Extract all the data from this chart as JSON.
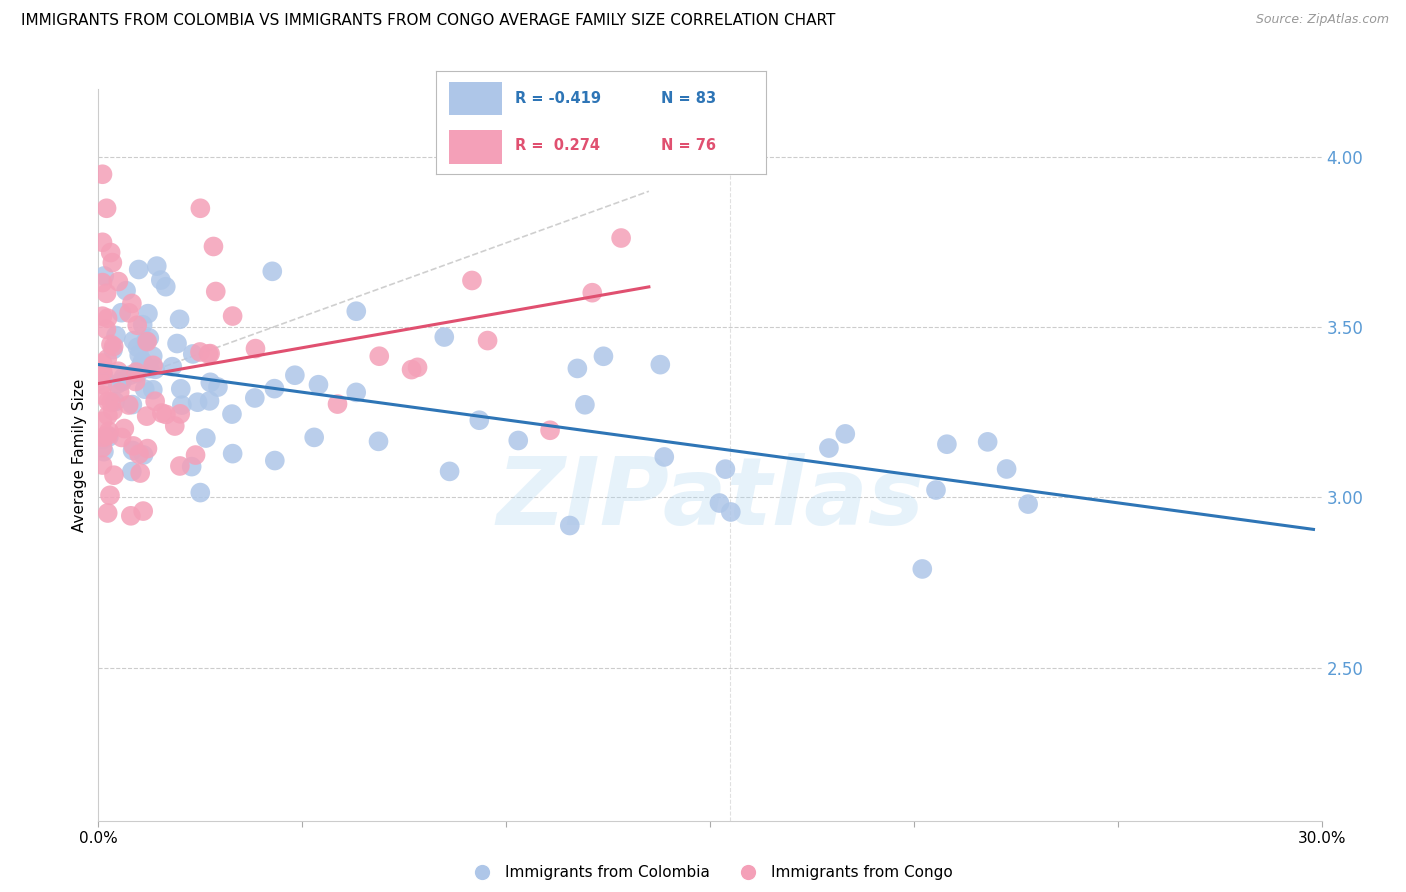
{
  "title": "IMMIGRANTS FROM COLOMBIA VS IMMIGRANTS FROM CONGO AVERAGE FAMILY SIZE CORRELATION CHART",
  "source": "Source: ZipAtlas.com",
  "ylabel": "Average Family Size",
  "xlim": [
    0.0,
    0.3
  ],
  "ylim": [
    2.05,
    4.2
  ],
  "yticks_right": [
    2.5,
    3.0,
    3.5,
    4.0
  ],
  "ytick_color": "#5b9bd5",
  "colombia_R": -0.419,
  "colombia_N": 83,
  "congo_R": 0.274,
  "congo_N": 76,
  "colombia_color": "#aec6e8",
  "colombia_line_color": "#2e75b6",
  "congo_color": "#f4a0b8",
  "congo_line_color": "#e05070",
  "watermark": "ZIPatlas",
  "watermark_color": "#aed6f1",
  "background_color": "#ffffff",
  "grid_color": "#cccccc",
  "title_fontsize": 11,
  "source_fontsize": 9
}
